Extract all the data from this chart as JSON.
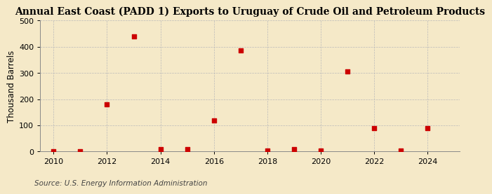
{
  "title": "Annual East Coast (PADD 1) Exports to Uruguay of Crude Oil and Petroleum Products",
  "ylabel": "Thousand Barrels",
  "source": "Source: U.S. Energy Information Administration",
  "years": [
    2010,
    2011,
    2012,
    2013,
    2014,
    2015,
    2016,
    2017,
    2018,
    2019,
    2020,
    2021,
    2022,
    2023,
    2024
  ],
  "values": [
    2,
    2,
    180,
    440,
    10,
    10,
    120,
    385,
    5,
    10,
    5,
    305,
    90,
    5,
    90
  ],
  "marker_color": "#cc0000",
  "marker_size": 4,
  "ylim": [
    0,
    500
  ],
  "yticks": [
    0,
    100,
    200,
    300,
    400,
    500
  ],
  "xlim": [
    2009.5,
    2025.2
  ],
  "xticks": [
    2010,
    2012,
    2014,
    2016,
    2018,
    2020,
    2022,
    2024
  ],
  "background_color": "#f5e9c8",
  "grid_color": "#bbbbbb",
  "title_fontsize": 10,
  "label_fontsize": 8.5,
  "tick_fontsize": 8,
  "source_fontsize": 7.5
}
